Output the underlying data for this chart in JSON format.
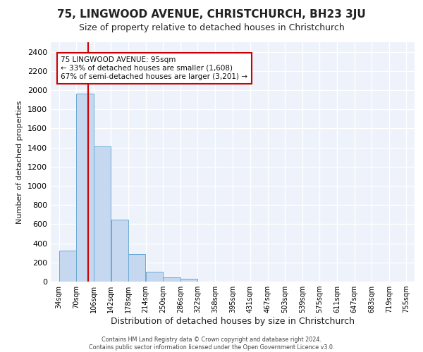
{
  "title": "75, LINGWOOD AVENUE, CHRISTCHURCH, BH23 3JU",
  "subtitle": "Size of property relative to detached houses in Christchurch",
  "xlabel": "Distribution of detached houses by size in Christchurch",
  "ylabel": "Number of detached properties",
  "bar_edges": [
    34,
    70,
    106,
    142,
    178,
    214,
    250,
    286,
    322,
    358,
    395,
    431,
    467,
    503,
    539,
    575,
    611,
    647,
    683,
    719,
    755
  ],
  "bar_heights": [
    325,
    1960,
    1410,
    650,
    285,
    105,
    45,
    30,
    0,
    0,
    0,
    0,
    0,
    0,
    0,
    0,
    0,
    0,
    0,
    0
  ],
  "bar_color": "#C5D8F0",
  "bar_edge_color": "#6AAAD4",
  "property_size": 95,
  "annotation_text": "75 LINGWOOD AVENUE: 95sqm\n← 33% of detached houses are smaller (1,608)\n67% of semi-detached houses are larger (3,201) →",
  "annotation_box_color": "#ffffff",
  "annotation_box_edge_color": "#cc0000",
  "vline_color": "#cc0000",
  "ylim": [
    0,
    2500
  ],
  "yticks": [
    0,
    200,
    400,
    600,
    800,
    1000,
    1200,
    1400,
    1600,
    1800,
    2000,
    2200,
    2400
  ],
  "tick_labels": [
    "34sqm",
    "70sqm",
    "106sqm",
    "142sqm",
    "178sqm",
    "214sqm",
    "250sqm",
    "286sqm",
    "322sqm",
    "358sqm",
    "395sqm",
    "431sqm",
    "467sqm",
    "503sqm",
    "539sqm",
    "575sqm",
    "611sqm",
    "647sqm",
    "683sqm",
    "719sqm",
    "755sqm"
  ],
  "footer": "Contains HM Land Registry data © Crown copyright and database right 2024.\nContains public sector information licensed under the Open Government Licence v3.0.",
  "bg_color": "#EEF2FB",
  "grid_color": "#ffffff",
  "title_fontsize": 11,
  "subtitle_fontsize": 9,
  "ylabel_fontsize": 8,
  "xlabel_fontsize": 9,
  "ytick_fontsize": 8,
  "xtick_fontsize": 7
}
